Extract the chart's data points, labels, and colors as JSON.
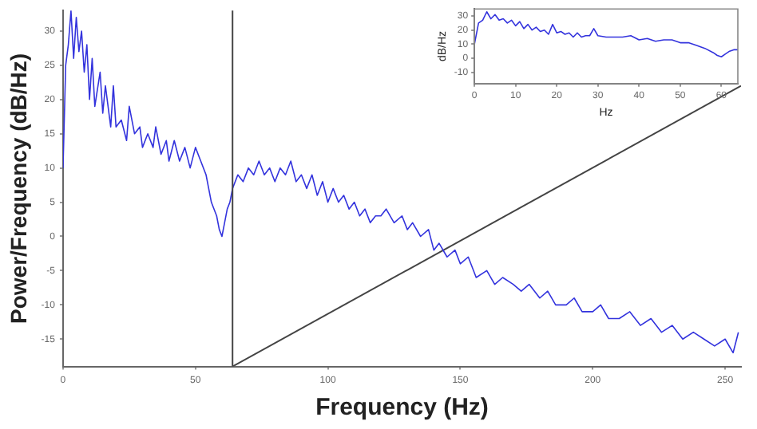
{
  "chart_data": [
    {
      "type": "line",
      "xlabel": "Frequency (Hz)",
      "ylabel": "Power/Frequency (dB/Hz)",
      "xlim": [
        0,
        256
      ],
      "ylim": [
        -19,
        33
      ],
      "xticks": [
        0,
        50,
        100,
        150,
        200,
        250
      ],
      "yticks": [
        -15,
        -10,
        -5,
        0,
        5,
        10,
        15,
        20,
        25,
        30
      ],
      "grid": false,
      "legend": false,
      "marker": "none",
      "line_style": "solid",
      "ref_lines": [
        {
          "axis": "x",
          "value": 64,
          "color": "#444444"
        }
      ],
      "series": [
        {
          "color": "#3333dd",
          "x": [
            0,
            1,
            2,
            3,
            4,
            5,
            6,
            7,
            8,
            9,
            10,
            11,
            12,
            14,
            15,
            16,
            18,
            19,
            20,
            22,
            24,
            25,
            27,
            29,
            30,
            32,
            34,
            35,
            37,
            39,
            40,
            42,
            44,
            46,
            48,
            50,
            52,
            54,
            56,
            58,
            59,
            60,
            61,
            62,
            63,
            64,
            66,
            68,
            70,
            72,
            74,
            76,
            78,
            80,
            82,
            84,
            86,
            88,
            90,
            92,
            94,
            96,
            98,
            100,
            102,
            104,
            106,
            108,
            110,
            112,
            114,
            116,
            118,
            120,
            122,
            125,
            128,
            130,
            132,
            135,
            138,
            140,
            142,
            145,
            148,
            150,
            153,
            156,
            160,
            163,
            166,
            170,
            173,
            176,
            180,
            183,
            186,
            190,
            193,
            196,
            200,
            203,
            206,
            210,
            214,
            218,
            222,
            226,
            230,
            234,
            238,
            242,
            246,
            250,
            253,
            255
          ],
          "values": [
            10,
            25,
            28,
            33,
            26,
            32,
            27,
            30,
            24,
            28,
            20,
            26,
            19,
            24,
            18,
            22,
            16,
            22,
            16,
            17,
            14,
            19,
            15,
            16,
            13,
            15,
            13,
            16,
            12,
            14,
            11,
            14,
            11,
            13,
            10,
            13,
            11,
            9,
            5,
            3,
            1,
            0,
            2,
            4,
            5,
            7,
            9,
            8,
            10,
            9,
            11,
            9,
            10,
            8,
            10,
            9,
            11,
            8,
            9,
            7,
            9,
            6,
            8,
            5,
            7,
            5,
            6,
            4,
            5,
            3,
            4,
            2,
            3,
            3,
            4,
            2,
            3,
            1,
            2,
            0,
            1,
            -2,
            -1,
            -3,
            -2,
            -4,
            -3,
            -6,
            -5,
            -7,
            -6,
            -7,
            -8,
            -7,
            -9,
            -8,
            -10,
            -10,
            -9,
            -11,
            -11,
            -10,
            -12,
            -12,
            -11,
            -13,
            -12,
            -14,
            -13,
            -15,
            -14,
            -15,
            -16,
            -15,
            -17,
            -14
          ]
        },
        {
          "type": "line",
          "color": "#444444",
          "x": [
            64,
            256
          ],
          "values": [
            -19,
            22
          ]
        }
      ]
    },
    {
      "type": "line",
      "xlabel": "Hz",
      "ylabel": "dB/Hz",
      "xlim": [
        0,
        64
      ],
      "ylim": [
        -18,
        35
      ],
      "xticks": [
        0,
        10,
        20,
        30,
        40,
        50,
        60
      ],
      "yticks": [
        -10,
        0,
        10,
        20,
        30
      ],
      "grid": false,
      "legend": false,
      "marker": "none",
      "line_style": "solid",
      "series": [
        {
          "color": "#3333dd",
          "x": [
            0,
            1,
            2,
            3,
            4,
            5,
            6,
            7,
            8,
            9,
            10,
            11,
            12,
            13,
            14,
            15,
            16,
            17,
            18,
            19,
            20,
            21,
            22,
            23,
            24,
            25,
            26,
            27,
            28,
            29,
            30,
            32,
            34,
            36,
            38,
            40,
            42,
            44,
            46,
            48,
            50,
            52,
            54,
            56,
            58,
            59,
            60,
            61,
            62,
            63,
            64
          ],
          "values": [
            10,
            25,
            27,
            33,
            28,
            31,
            27,
            28,
            25,
            27,
            23,
            26,
            21,
            24,
            20,
            22,
            19,
            20,
            17,
            24,
            18,
            19,
            17,
            18,
            15,
            18,
            15,
            16,
            16,
            21,
            16,
            15,
            15,
            15,
            16,
            13,
            14,
            12,
            13,
            13,
            11,
            11,
            9,
            7,
            4,
            2,
            1,
            3,
            5,
            6,
            6
          ]
        }
      ]
    }
  ]
}
